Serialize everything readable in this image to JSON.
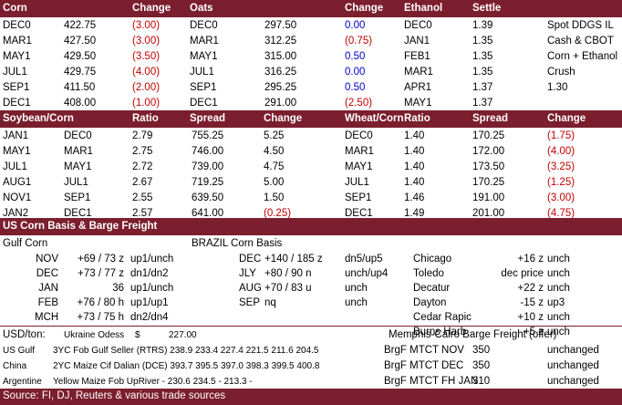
{
  "corn_oats_ethanol": {
    "headers": [
      "Corn",
      "Change",
      "Oats",
      "Change",
      "Ethanol",
      "Settle"
    ],
    "rows": [
      {
        "c1": "DEC0",
        "c2": "422.75",
        "c3": "(3.00)",
        "c4": "DEC0",
        "c5": "297.50",
        "c6": "0.00",
        "c7": "DEC0",
        "c8": "1.39",
        "c9": "Spot DDGS IL"
      },
      {
        "c1": "MAR1",
        "c2": "427.50",
        "c3": "(3.00)",
        "c4": "MAR1",
        "c5": "312.25",
        "c6": "(0.75)",
        "c7": "JAN1",
        "c8": "1.35",
        "c9": "Cash & CBOT"
      },
      {
        "c1": "MAY1",
        "c2": "429.50",
        "c3": "(3.50)",
        "c4": "MAY1",
        "c5": "315.00",
        "c6": "0.50",
        "c7": "FEB1",
        "c8": "1.35",
        "c9": "Corn + Ethanol"
      },
      {
        "c1": "JUL1",
        "c2": "429.75",
        "c3": "(4.00)",
        "c4": "JUL1",
        "c5": "316.25",
        "c6": "0.00",
        "c7": "MAR1",
        "c8": "1.35",
        "c9": "Crush"
      },
      {
        "c1": "SEP1",
        "c2": "411.50",
        "c3": "(2.00)",
        "c4": "SEP1",
        "c5": "295.25",
        "c6": "0.50",
        "c7": "APR1",
        "c8": "1.37",
        "c9": "1.30"
      },
      {
        "c1": "DEC1",
        "c2": "408.00",
        "c3": "(1.00)",
        "c4": "DEC1",
        "c5": "291.00",
        "c6": "(2.50)",
        "c7": "MAY1",
        "c8": "1.37",
        "c9": ""
      }
    ]
  },
  "spreads": {
    "headers": [
      "Soybean/Corn",
      "Ratio",
      "Spread",
      "Change",
      "Wheat/Corn",
      "Ratio",
      "Spread",
      "Change"
    ],
    "rows": [
      {
        "a1": "JAN1",
        "a2": "DEC0",
        "a3": "2.79",
        "a4": "755.25",
        "a5": "5.25",
        "b1": "DEC0",
        "b2": "1.40",
        "b3": "170.25",
        "b4": "(1.75)"
      },
      {
        "a1": "MAY1",
        "a2": "MAR1",
        "a3": "2.75",
        "a4": "746.00",
        "a5": "4.50",
        "b1": "MAR1",
        "b2": "1.40",
        "b3": "172.00",
        "b4": "(4.00)"
      },
      {
        "a1": "JUL1",
        "a2": "MAY1",
        "a3": "2.72",
        "a4": "739.00",
        "a5": "4.75",
        "b1": "MAY1",
        "b2": "1.40",
        "b3": "173.50",
        "b4": "(3.25)"
      },
      {
        "a1": "AUG1",
        "a2": "JUL1",
        "a3": "2.67",
        "a4": "719.25",
        "a5": "5.00",
        "b1": "JUL1",
        "b2": "1.40",
        "b3": "170.25",
        "b4": "(1.25)"
      },
      {
        "a1": "NOV1",
        "a2": "SEP1",
        "a3": "2.55",
        "a4": "639.50",
        "a5": "1.50",
        "b1": "SEP1",
        "b2": "1.46",
        "b3": "191.00",
        "b4": "(3.00)"
      },
      {
        "a1": "JAN2",
        "a2": "DEC1",
        "a3": "2.57",
        "a4": "641.00",
        "a5": "(0.25)",
        "b1": "DEC1",
        "b2": "1.49",
        "b3": "201.00",
        "b4": "(4.75)"
      }
    ]
  },
  "basis": {
    "title": "US Corn Basis & Barge Freight",
    "gulf_label": "Gulf Corn",
    "brazil_label": "BRAZIL Corn Basis",
    "rows": [
      {
        "m": "NOV",
        "v": "+69 / 73 z",
        "s": "up1/unch",
        "bm": "DEC",
        "bv": "+140 / 185 z",
        "bs": "dn5/up5",
        "loc": "Chicago",
        "lv": "+16 z",
        "ls": "unch"
      },
      {
        "m": "DEC",
        "v": "+73 / 77 z",
        "s": "dn1/dn2",
        "bm": "JLY",
        "bv": "+80 / 90 n",
        "bs": "unch/up4",
        "loc": "Toledo",
        "lv": "dec price",
        "ls": "unch"
      },
      {
        "m": "JAN",
        "v": "36",
        "s": "up1/unch",
        "bm": "AUG",
        "bv": "+70 / 83 u",
        "bs": "unch",
        "loc": "Decatur",
        "lv": "+22 z",
        "ls": "unch"
      },
      {
        "m": "FEB",
        "v": "+76 / 80 h",
        "s": "up1/up1",
        "bm": "SEP",
        "bv": "nq",
        "bs": "unch",
        "loc": "Dayton",
        "lv": "-15 z",
        "ls": "up3"
      },
      {
        "m": "MCH",
        "v": "+73 / 75 h",
        "s": "dn2/dn4",
        "bm": "",
        "bv": "",
        "bs": "",
        "loc": "Cedar Rapic",
        "lv": "+10 z",
        "ls": "unch"
      },
      {
        "m": "",
        "v": "",
        "s": "",
        "bm": "",
        "bv": "",
        "bs": "",
        "loc": "Burns Harb",
        "lv": "+5 z",
        "ls": "unch"
      }
    ]
  },
  "fob": {
    "usd_label": "USD/ton:",
    "ukraine": "Ukraine Odess",
    "ukraine_cur": "$",
    "ukraine_val": "227.00",
    "memphis": "Memphis-Cairo Barge Freight (offer)",
    "rows": [
      {
        "origin": "US Gulf",
        "desc": "3YC Fob Gulf Seller (RTRS) 238.9  233.4  227.4  221.5  211.6  204.5",
        "bl": "BrgF MTCT NOV",
        "bv": "350",
        "bs": "unchanged"
      },
      {
        "origin": "China",
        "desc": "2YC Maize Cif Dalian (DCE) 393.7  395.5  397.0  398.3  399.5  400.8",
        "bl": "BrgF MTCT DEC",
        "bv": "350",
        "bs": "unchanged"
      },
      {
        "origin": "Argentine",
        "desc": "Yellow Maize Fob UpRiver  -  230.6  234.5  -  213.3  -",
        "bl": "BrgF MTCT FH JAN",
        "bv": "310",
        "bs": "unchanged"
      }
    ]
  },
  "source": "Source: FI, DJ, Reuters & various trade sources",
  "colors": {
    "header_bg": "#7b1e2e",
    "negative": "#c00000",
    "neutral": "#0000cc"
  }
}
